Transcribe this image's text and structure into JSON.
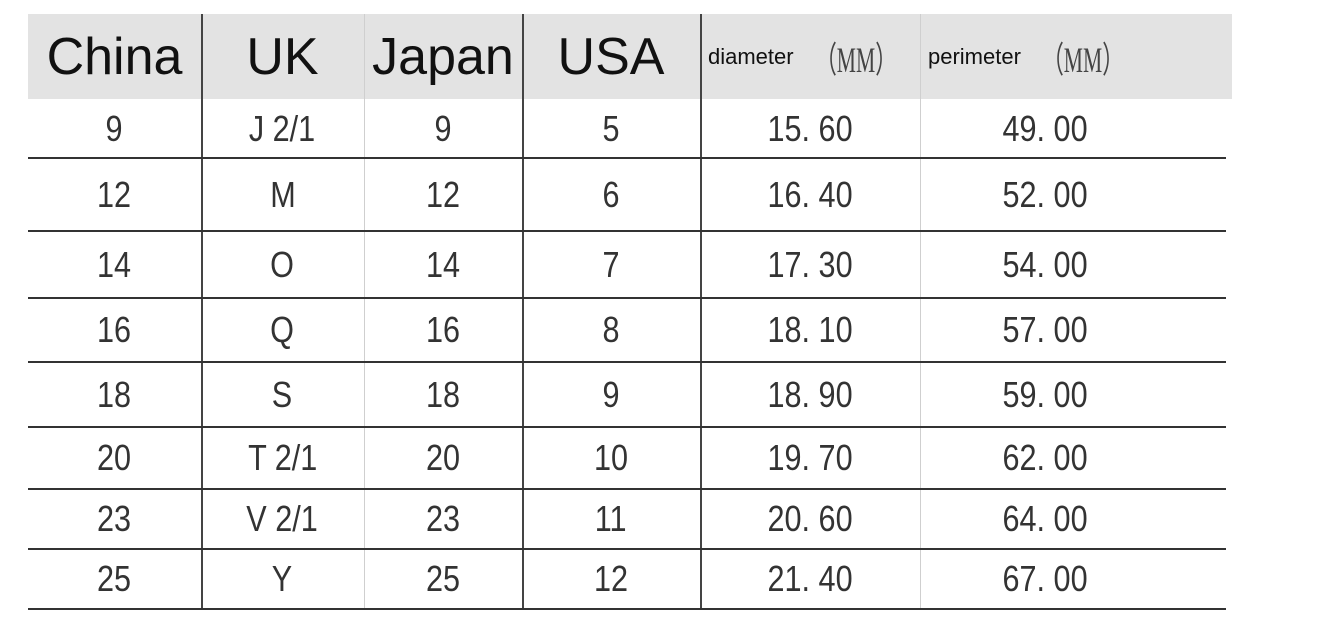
{
  "table": {
    "headers": [
      "China",
      "UK",
      "Japan",
      "USA",
      "diameter",
      "perimeter"
    ],
    "unit_suffix": "（MM）",
    "rows": [
      [
        "9",
        "J  2/1",
        "9",
        "5",
        "15. 60",
        "49. 00"
      ],
      [
        "12",
        "M",
        "12",
        "6",
        "16. 40",
        "52. 00"
      ],
      [
        "14",
        "O",
        "14",
        "7",
        "17. 30",
        "54. 00"
      ],
      [
        "16",
        "Q",
        "16",
        "8",
        "18. 10",
        "57. 00"
      ],
      [
        "18",
        "S",
        "18",
        "9",
        "18. 90",
        "59. 00"
      ],
      [
        "20",
        "T  2/1",
        "20",
        "10",
        "19. 70",
        "62. 00"
      ],
      [
        "23",
        "V  2/1",
        "23",
        "11",
        "20. 60",
        "64. 00"
      ],
      [
        "25",
        "Y",
        "25",
        "12",
        "21. 40",
        "67. 00"
      ]
    ]
  },
  "colors": {
    "header_bg": "#e3e3e3",
    "lines": "#333333"
  }
}
